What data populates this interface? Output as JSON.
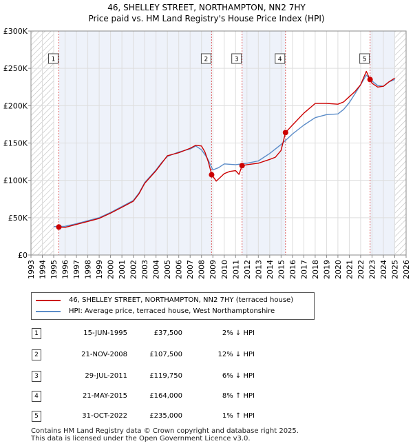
{
  "chart_data": {
    "type": "line",
    "title": "46, SHELLEY STREET, NORTHAMPTON, NN2 7HY",
    "subtitle": "Price paid vs. HM Land Registry's House Price Index (HPI)",
    "xlabel": "",
    "ylabel": "",
    "xlim": [
      1993,
      2026
    ],
    "ylim": [
      0,
      300000
    ],
    "x_ticks": [
      "1993",
      "1994",
      "1995",
      "1996",
      "1997",
      "1998",
      "1999",
      "2000",
      "2001",
      "2002",
      "2003",
      "2004",
      "2005",
      "2006",
      "2007",
      "2008",
      "2009",
      "2010",
      "2011",
      "2012",
      "2013",
      "2014",
      "2015",
      "2016",
      "2017",
      "2018",
      "2019",
      "2020",
      "2021",
      "2022",
      "2023",
      "2024",
      "2025",
      "2026"
    ],
    "y_ticks": [
      {
        "value": 0,
        "label": "£0"
      },
      {
        "value": 50000,
        "label": "£50K"
      },
      {
        "value": 100000,
        "label": "£100K"
      },
      {
        "value": 150000,
        "label": "£150K"
      },
      {
        "value": 200000,
        "label": "£200K"
      },
      {
        "value": 250000,
        "label": "£250K"
      },
      {
        "value": 300000,
        "label": "£300K"
      }
    ],
    "grid": true,
    "hatched_ranges": [
      [
        1993,
        1995.0
      ],
      [
        2025.0,
        2026
      ]
    ],
    "shaded_ranges": [
      [
        1995.45,
        2008.9
      ],
      [
        2011.57,
        2015.39
      ],
      [
        2022.83,
        2025.0
      ]
    ],
    "series": [
      {
        "name": "46, SHELLEY STREET, NORTHAMPTON, NN2 7HY (terraced house)",
        "color": "#cc0000",
        "x": [
          1995.45,
          1996,
          1997,
          1998,
          1999,
          2000,
          2001,
          2002,
          2002.5,
          2003,
          2004,
          2004.5,
          2005,
          2006,
          2007,
          2007.5,
          2008,
          2008.3,
          2008.6,
          2008.9,
          2009.3,
          2010,
          2010.5,
          2011,
          2011.3,
          2011.57,
          2012,
          2013,
          2014,
          2014.5,
          2015,
          2015.39,
          2016,
          2017,
          2018,
          2019,
          2020,
          2020.5,
          2021,
          2021.5,
          2022,
          2022.5,
          2022.83,
          2023,
          2023.5,
          2024,
          2024.5,
          2025
        ],
        "y": [
          37500,
          37000,
          41000,
          45000,
          49000,
          56000,
          64000,
          72000,
          82000,
          96000,
          113000,
          123000,
          133000,
          137000,
          143000,
          147000,
          146000,
          138000,
          125000,
          107500,
          99000,
          109000,
          112000,
          113000,
          108000,
          119750,
          121000,
          123000,
          128000,
          131000,
          140000,
          164000,
          174000,
          190000,
          203000,
          203000,
          202000,
          205000,
          212000,
          219000,
          228000,
          246000,
          235000,
          230000,
          225000,
          226000,
          232000,
          237000
        ]
      },
      {
        "name": "HPI: Average price, terraced house, West Northamptonshire",
        "color": "#5b8cc8",
        "x": [
          1995,
          1996,
          1997,
          1998,
          1999,
          2000,
          2001,
          2002,
          2002.5,
          2003,
          2004,
          2004.5,
          2005,
          2006,
          2007,
          2007.5,
          2008,
          2008.5,
          2009,
          2009.5,
          2010,
          2011,
          2012,
          2013,
          2014,
          2015,
          2015.5,
          2016,
          2017,
          2018,
          2019,
          2020,
          2020.5,
          2021,
          2021.5,
          2022,
          2022.5,
          2023,
          2023.5,
          2024,
          2024.5,
          2025
        ],
        "y": [
          38000,
          38500,
          42000,
          46000,
          50000,
          57000,
          65000,
          73000,
          83000,
          97000,
          114000,
          124000,
          132000,
          138000,
          142000,
          146000,
          141000,
          130000,
          114000,
          117000,
          122000,
          121000,
          123000,
          126000,
          136000,
          148000,
          155000,
          162000,
          174000,
          184000,
          188000,
          189000,
          195000,
          204000,
          216000,
          228000,
          241000,
          233000,
          227000,
          226000,
          232000,
          235000
        ]
      }
    ],
    "markers": [
      {
        "id": "1",
        "x": 1995.45,
        "y": 37500
      },
      {
        "id": "2",
        "x": 2008.89,
        "y": 107500
      },
      {
        "id": "3",
        "x": 2011.57,
        "y": 119750
      },
      {
        "id": "4",
        "x": 2015.39,
        "y": 164000
      },
      {
        "id": "5",
        "x": 2022.83,
        "y": 235000
      }
    ]
  },
  "legend": {
    "items": [
      {
        "label": "46, SHELLEY STREET, NORTHAMPTON, NN2 7HY (terraced house)",
        "color": "#cc0000"
      },
      {
        "label": "HPI: Average price, terraced house, West Northamptonshire",
        "color": "#5b8cc8"
      }
    ]
  },
  "sales": [
    {
      "num": "1",
      "date": "15-JUN-1995",
      "price": "£37,500",
      "hpi": "2% ↓ HPI"
    },
    {
      "num": "2",
      "date": "21-NOV-2008",
      "price": "£107,500",
      "hpi": "12% ↓ HPI"
    },
    {
      "num": "3",
      "date": "29-JUL-2011",
      "price": "£119,750",
      "hpi": "6% ↓ HPI"
    },
    {
      "num": "4",
      "date": "21-MAY-2015",
      "price": "£164,000",
      "hpi": "8% ↑ HPI"
    },
    {
      "num": "5",
      "date": "31-OCT-2022",
      "price": "£235,000",
      "hpi": "1% ↑ HPI"
    }
  ],
  "footer": {
    "line1": "Contains HM Land Registry data © Crown copyright and database right 2025.",
    "line2": "This data is licensed under the Open Government Licence v3.0."
  }
}
